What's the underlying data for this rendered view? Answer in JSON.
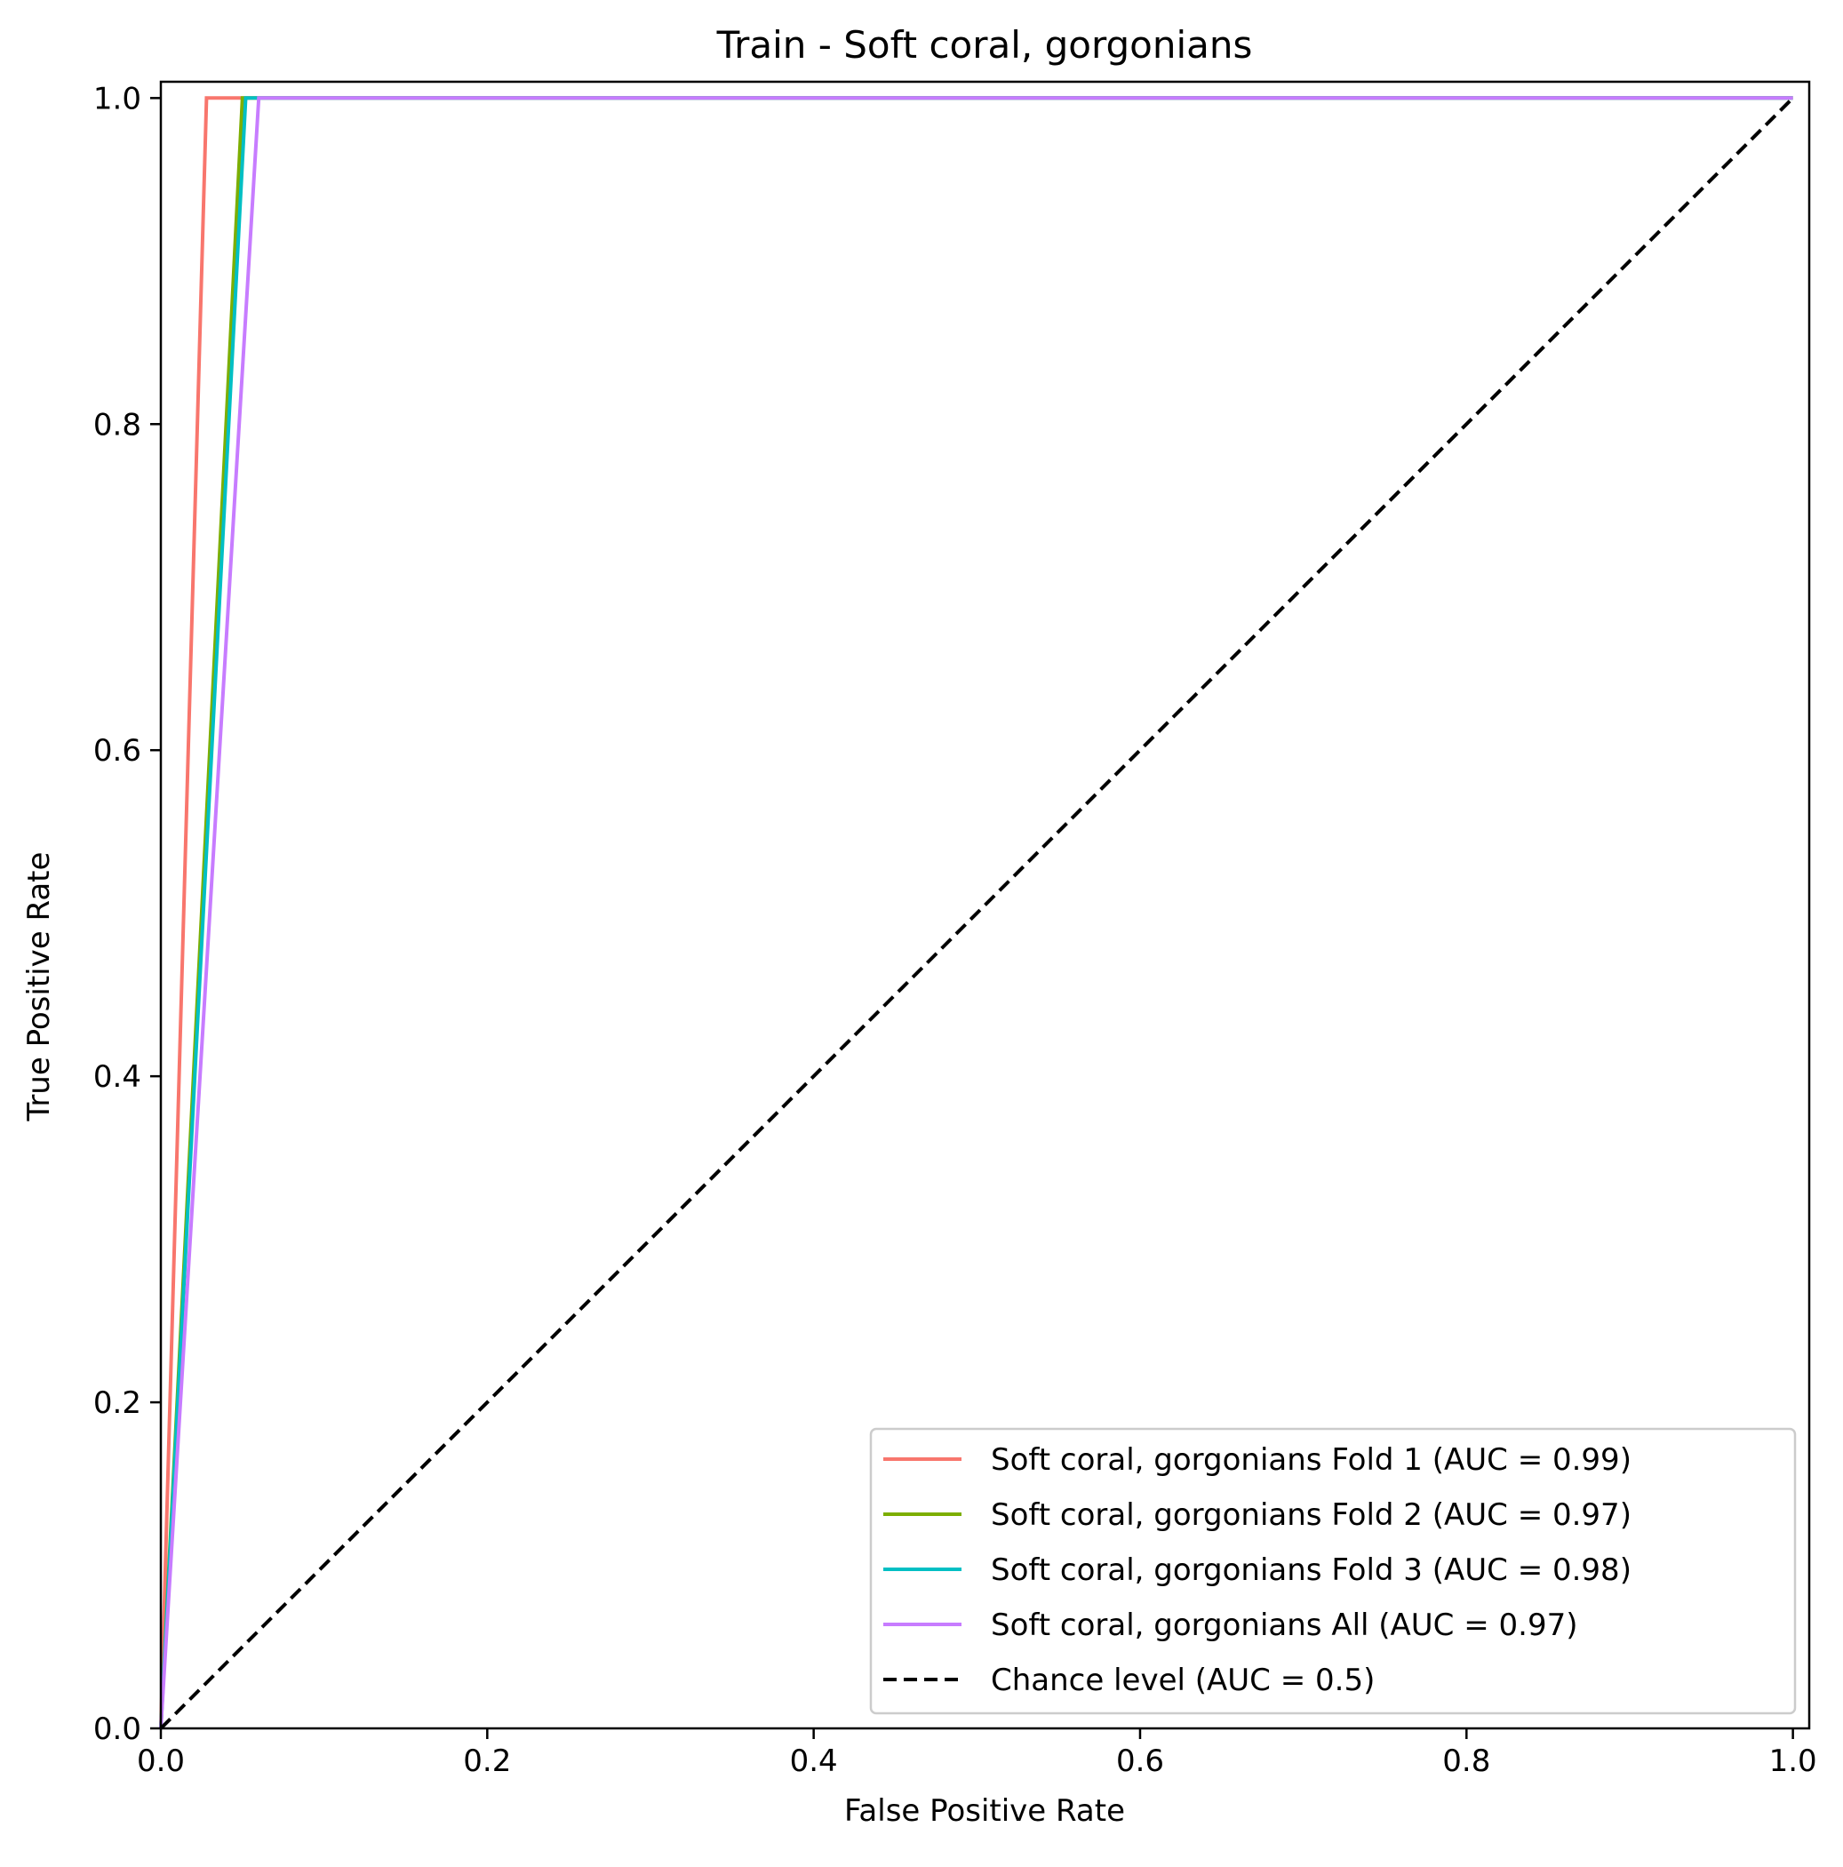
{
  "chart_data": {
    "type": "line",
    "title": "Train - Soft coral, gorgonians",
    "xlabel": "False Positive Rate",
    "ylabel": "True Positive Rate",
    "xlim": [
      0.0,
      1.01
    ],
    "ylim": [
      0.0,
      1.01
    ],
    "xticks": [
      "0.0",
      "0.2",
      "0.4",
      "0.6",
      "0.8",
      "1.0"
    ],
    "yticks": [
      "0.0",
      "0.2",
      "0.4",
      "0.6",
      "0.8",
      "1.0"
    ],
    "grid": false,
    "legend_position": "lower-right",
    "series": [
      {
        "name": "Soft coral, gorgonians Fold 1 (AUC = 0.99)",
        "color": "#f8766d",
        "style": "solid",
        "x": [
          0.0,
          0.028,
          1.0
        ],
        "y": [
          0.0,
          1.0,
          1.0
        ]
      },
      {
        "name": "Soft coral, gorgonians Fold 2 (AUC = 0.97)",
        "color": "#7cae00",
        "style": "solid",
        "x": [
          0.0,
          0.05,
          1.0
        ],
        "y": [
          0.0,
          1.0,
          1.0
        ]
      },
      {
        "name": "Soft coral, gorgonians Fold 3 (AUC = 0.98)",
        "color": "#00bfc4",
        "style": "solid",
        "x": [
          0.0,
          0.052,
          1.0
        ],
        "y": [
          0.0,
          1.0,
          1.0
        ]
      },
      {
        "name": "Soft coral, gorgonians All (AUC = 0.97)",
        "color": "#c77cff",
        "style": "solid",
        "x": [
          0.0,
          0.06,
          1.0
        ],
        "y": [
          0.0,
          1.0,
          1.0
        ]
      },
      {
        "name": "Chance level (AUC = 0.5)",
        "color": "#000000",
        "style": "dashed",
        "x": [
          0.0,
          1.0
        ],
        "y": [
          0.0,
          1.0
        ]
      }
    ]
  }
}
